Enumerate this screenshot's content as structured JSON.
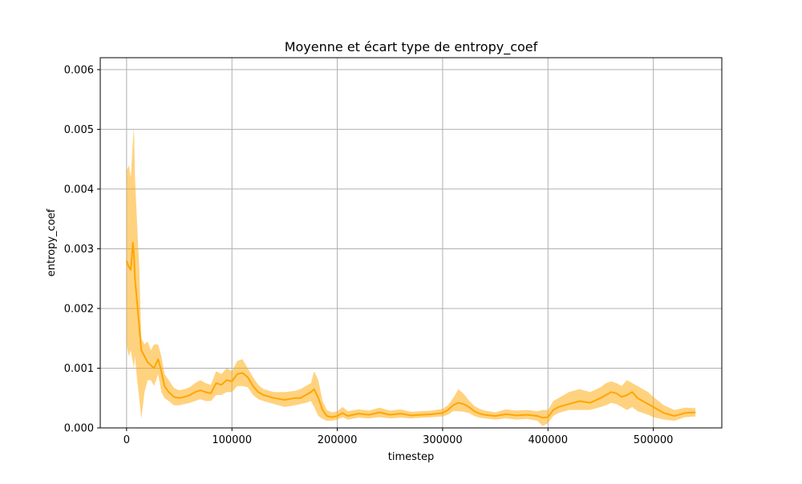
{
  "chart_data": {
    "type": "line",
    "title": "Moyenne et écart type de entropy_coef",
    "xlabel": "timestep",
    "ylabel": "entropy_coef",
    "xlim": [
      -25000,
      565000
    ],
    "ylim": [
      0,
      0.0062
    ],
    "x_ticks": [
      0,
      100000,
      200000,
      300000,
      400000,
      500000
    ],
    "x_tick_labels": [
      "0",
      "100000",
      "200000",
      "300000",
      "400000",
      "500000"
    ],
    "y_ticks": [
      0,
      0.001,
      0.002,
      0.003,
      0.004,
      0.005,
      0.006
    ],
    "y_tick_labels": [
      "0.000",
      "0.001",
      "0.002",
      "0.003",
      "0.004",
      "0.005",
      "0.006"
    ],
    "grid": true,
    "colors": {
      "line": "#ffa500",
      "band": "#ffa500",
      "grid": "#b0b0b0"
    },
    "series": [
      {
        "name": "",
        "x": [
          0,
          2000,
          4000,
          6000,
          7000,
          8000,
          10000,
          12000,
          14000,
          17000,
          20000,
          23000,
          26000,
          30000,
          33000,
          36000,
          40000,
          45000,
          50000,
          55000,
          60000,
          65000,
          70000,
          75000,
          80000,
          85000,
          90000,
          95000,
          100000,
          105000,
          110000,
          115000,
          120000,
          125000,
          130000,
          140000,
          150000,
          160000,
          165000,
          170000,
          175000,
          178000,
          182000,
          186000,
          190000,
          195000,
          200000,
          205000,
          210000,
          220000,
          230000,
          240000,
          250000,
          260000,
          270000,
          280000,
          290000,
          300000,
          305000,
          310000,
          315000,
          320000,
          325000,
          330000,
          335000,
          340000,
          350000,
          360000,
          370000,
          380000,
          390000,
          395000,
          400000,
          405000,
          410000,
          420000,
          430000,
          440000,
          450000,
          455000,
          460000,
          465000,
          470000,
          475000,
          480000,
          485000,
          490000,
          495000,
          500000,
          510000,
          520000,
          530000,
          540000
        ],
        "mean": [
          0.0028,
          0.0027,
          0.00265,
          0.0031,
          0.0029,
          0.0025,
          0.0021,
          0.0017,
          0.0013,
          0.0012,
          0.0011,
          0.00105,
          0.001,
          0.00115,
          0.00095,
          0.0007,
          0.0006,
          0.00052,
          0.0005,
          0.00052,
          0.00055,
          0.0006,
          0.00063,
          0.0006,
          0.00058,
          0.00075,
          0.00072,
          0.0008,
          0.00078,
          0.0009,
          0.00092,
          0.00085,
          0.0007,
          0.0006,
          0.00055,
          0.0005,
          0.00047,
          0.0005,
          0.0005,
          0.00055,
          0.0006,
          0.00065,
          0.0005,
          0.0003,
          0.0002,
          0.00018,
          0.0002,
          0.00025,
          0.0002,
          0.00024,
          0.00022,
          0.00026,
          0.00022,
          0.00024,
          0.00021,
          0.00022,
          0.00023,
          0.00025,
          0.0003,
          0.00038,
          0.00042,
          0.0004,
          0.00035,
          0.00028,
          0.00024,
          0.00022,
          0.0002,
          0.00023,
          0.00021,
          0.00022,
          0.0002,
          0.00017,
          0.00018,
          0.0003,
          0.00035,
          0.0004,
          0.00045,
          0.00042,
          0.0005,
          0.00055,
          0.0006,
          0.00058,
          0.00052,
          0.00055,
          0.0006,
          0.0005,
          0.00045,
          0.0004,
          0.00035,
          0.00025,
          0.0002,
          0.00025,
          0.00026
        ],
        "lower": [
          0.0014,
          0.0012,
          0.0013,
          0.0011,
          0.001,
          0.0012,
          0.0008,
          0.0005,
          0.00015,
          0.0006,
          0.0008,
          0.0008,
          0.0007,
          0.0009,
          0.0006,
          0.0005,
          0.00045,
          0.00038,
          0.00038,
          0.0004,
          0.00042,
          0.00045,
          0.00048,
          0.00045,
          0.00045,
          0.00055,
          0.00055,
          0.0006,
          0.0006,
          0.0007,
          0.0007,
          0.00068,
          0.00055,
          0.00048,
          0.00045,
          0.0004,
          0.00035,
          0.00038,
          0.0004,
          0.00042,
          0.00045,
          0.00035,
          0.0002,
          0.00015,
          0.00012,
          0.00012,
          0.00014,
          0.00018,
          0.00014,
          0.00017,
          0.00016,
          0.00018,
          0.00016,
          0.00017,
          0.00016,
          0.00017,
          0.00018,
          0.00019,
          0.00022,
          0.00028,
          0.00028,
          0.00027,
          0.00025,
          0.0002,
          0.00017,
          0.00016,
          0.00014,
          0.00016,
          0.00014,
          0.00015,
          0.00012,
          3e-05,
          8e-05,
          0.0002,
          0.00025,
          0.0003,
          0.0003,
          0.0003,
          0.00035,
          0.00038,
          0.00042,
          0.0004,
          0.00035,
          0.0003,
          0.00035,
          0.00028,
          0.00025,
          0.00022,
          0.00018,
          0.00014,
          0.00012,
          0.00018,
          0.00019
        ],
        "upper": [
          0.0043,
          0.0044,
          0.0042,
          0.0048,
          0.00505,
          0.0042,
          0.0034,
          0.0027,
          0.0015,
          0.0014,
          0.00145,
          0.0013,
          0.0014,
          0.0014,
          0.0012,
          0.0009,
          0.0008,
          0.00067,
          0.00063,
          0.00065,
          0.00068,
          0.00075,
          0.0008,
          0.00075,
          0.00072,
          0.00095,
          0.0009,
          0.001,
          0.00095,
          0.00112,
          0.00115,
          0.001,
          0.00085,
          0.00072,
          0.00065,
          0.0006,
          0.0006,
          0.00062,
          0.00065,
          0.0007,
          0.00075,
          0.00095,
          0.0008,
          0.00045,
          0.0003,
          0.00026,
          0.00028,
          0.00035,
          0.00028,
          0.00031,
          0.00029,
          0.00034,
          0.00029,
          0.00031,
          0.00027,
          0.00028,
          0.00029,
          0.00032,
          0.00038,
          0.0005,
          0.00065,
          0.00057,
          0.00046,
          0.00037,
          0.00032,
          0.00029,
          0.00026,
          0.00031,
          0.00029,
          0.0003,
          0.00028,
          0.0003,
          0.0003,
          0.00045,
          0.0005,
          0.0006,
          0.00065,
          0.0006,
          0.00068,
          0.00075,
          0.00078,
          0.00075,
          0.0007,
          0.0008,
          0.00075,
          0.0007,
          0.00065,
          0.0006,
          0.00052,
          0.00038,
          0.0003,
          0.00034,
          0.00033
        ]
      }
    ]
  }
}
